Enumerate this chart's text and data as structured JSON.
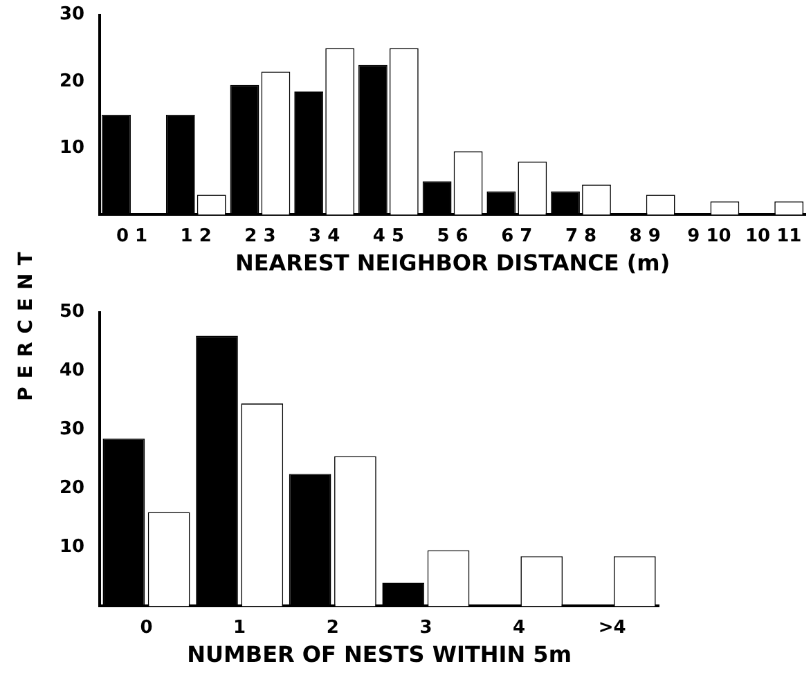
{
  "chart_data": [
    {
      "type": "bar",
      "xlabel": "NEAREST NEIGHBOR DISTANCE (m)",
      "ylabel": "PERCENT",
      "categories": [
        "0 1",
        "1 2",
        "2 3",
        "3 4",
        "4 5",
        "5 6",
        "6 7",
        "7 8",
        "8 9",
        "9 10",
        "10 11"
      ],
      "series": [
        {
          "color": "#000000",
          "values": [
            15,
            15,
            19.5,
            18.5,
            22.5,
            5,
            3.5,
            3.5,
            0,
            0,
            0
          ]
        },
        {
          "color": "#ffffff",
          "values": [
            0,
            3,
            21.5,
            25,
            25,
            9.5,
            8,
            4.5,
            3,
            2,
            2
          ]
        }
      ],
      "ylim": [
        0,
        30
      ],
      "yticks": [
        10,
        20,
        30
      ],
      "grid": false,
      "legend": false
    },
    {
      "type": "bar",
      "xlabel": "NUMBER OF NESTS WITHIN 5m",
      "categories": [
        "0",
        "1",
        "2",
        "3",
        "4",
        ">4"
      ],
      "series": [
        {
          "color": "#000000",
          "values": [
            28.5,
            46,
            22.5,
            4,
            0,
            0
          ]
        },
        {
          "color": "#ffffff",
          "values": [
            16,
            34.5,
            25.5,
            9.5,
            8.5,
            8.5
          ]
        }
      ],
      "ylim": [
        0,
        50
      ],
      "yticks": [
        10,
        20,
        30,
        40,
        50
      ],
      "grid": false,
      "legend": false
    }
  ]
}
